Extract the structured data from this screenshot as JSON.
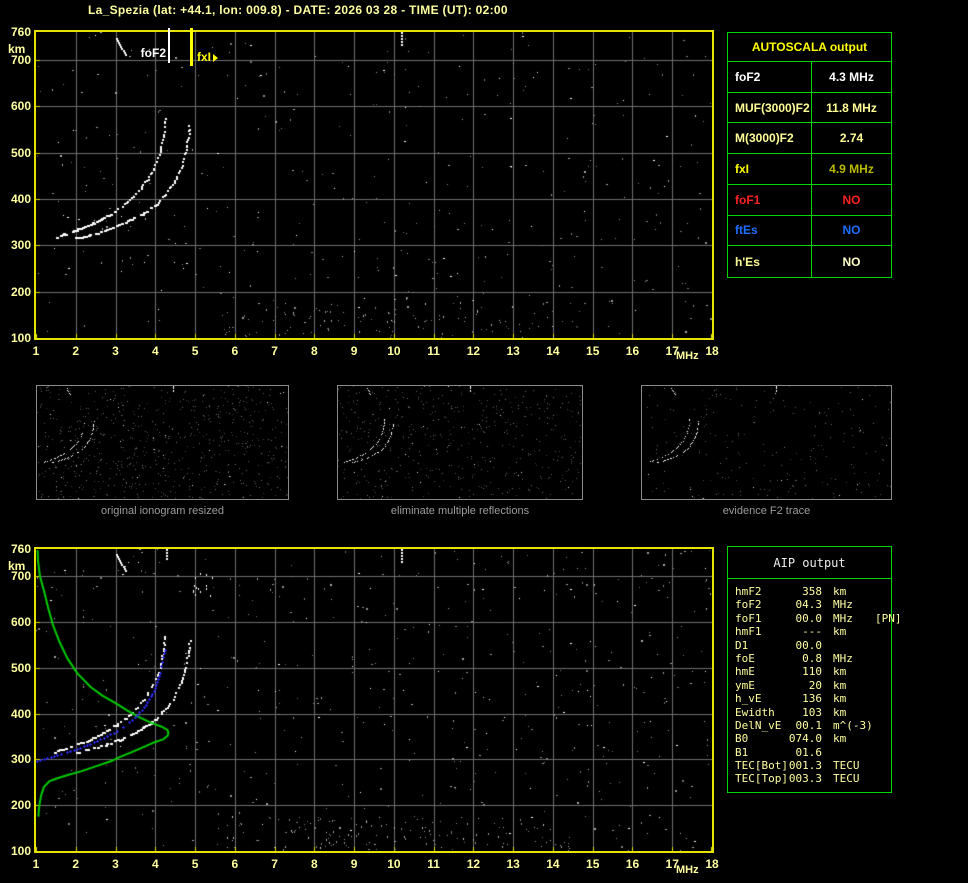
{
  "header": {
    "title": "La_Spezia (lat: +44.1, lon: 009.8) - DATE: 2026 03 28 - TIME (UT): 02:00"
  },
  "colors": {
    "background": "#000000",
    "axis_text": "#ffffa0",
    "plot_border": "#e4e400",
    "grid": "#6f6f6f",
    "table_border": "#00d800",
    "trace_white": "#ffffff",
    "profile_green": "#00cc00",
    "restored_blue": "#2a2aee",
    "noise_gray": "#8a8a8a",
    "caption_gray": "#9c9c9c",
    "marker_foF2": "#ffffff",
    "marker_fxI": "#ffff00"
  },
  "top_plot": {
    "x_ticks": [
      "1",
      "2",
      "3",
      "4",
      "5",
      "6",
      "7",
      "8",
      "9",
      "10",
      "11",
      "12",
      "13",
      "14",
      "15",
      "16",
      "17",
      "18"
    ],
    "y_ticks": [
      "760",
      "700",
      "600",
      "500",
      "400",
      "300",
      "200",
      "100"
    ],
    "x_axis_unit": "MHz",
    "y_axis_unit": "km",
    "markers": {
      "foF2": {
        "label": "foF2",
        "freq_mhz": 4.35
      },
      "fxI": {
        "label": "fxI",
        "freq_mhz": 4.92
      }
    }
  },
  "bottom_plot": {
    "x_ticks": [
      "1",
      "2",
      "3",
      "4",
      "5",
      "6",
      "7",
      "8",
      "9",
      "10",
      "11",
      "12",
      "13",
      "14",
      "15",
      "16",
      "17",
      "18"
    ],
    "y_ticks": [
      "760",
      "700",
      "600",
      "500",
      "400",
      "300",
      "200",
      "100"
    ],
    "x_axis_unit": "MHz",
    "y_axis_unit": "km"
  },
  "autoscala_table": {
    "title": "AUTOSCALA output",
    "rows": [
      {
        "label": "foF2",
        "value": "4.3 MHz",
        "color": "#ffffff",
        "value_color": "#ffffff"
      },
      {
        "label": "MUF(3000)F2",
        "value": "11.8 MHz",
        "color": "#ffff96",
        "value_color": "#ffff96"
      },
      {
        "label": "M(3000)F2",
        "value": "2.74",
        "color": "#ffff96",
        "value_color": "#ffff96"
      },
      {
        "label": "fxI",
        "value": "4.9 MHz",
        "color": "#ffff00",
        "value_color": "#b9b900"
      },
      {
        "label": "foF1",
        "value": "NO",
        "color": "#ff2222",
        "value_color": "#ff2222"
      },
      {
        "label": "ftEs",
        "value": "NO",
        "color": "#1e6eff",
        "value_color": "#1e6eff"
      },
      {
        "label": "h'Es",
        "value": "NO",
        "color": "#ffff96",
        "value_color": "#ffffc8"
      }
    ]
  },
  "thumbnails": [
    {
      "caption": "original ionogram resized"
    },
    {
      "caption": "eliminate multiple reflections"
    },
    {
      "caption": "evidence F2 trace"
    }
  ],
  "aip_table": {
    "title": "AIP output",
    "rows": [
      {
        "label": "hmF2",
        "value": "358",
        "unit": "km",
        "extra": ""
      },
      {
        "label": "foF2",
        "value": "04.3",
        "unit": "MHz",
        "extra": ""
      },
      {
        "label": "foF1",
        "value": "00.0",
        "unit": "MHz",
        "extra": "[PN]"
      },
      {
        "label": "hmF1",
        "value": "---",
        "unit": "km",
        "extra": ""
      },
      {
        "label": "D1",
        "value": "00.0",
        "unit": "",
        "extra": ""
      },
      {
        "label": "foE",
        "value": "0.8",
        "unit": "MHz",
        "extra": ""
      },
      {
        "label": "hmE",
        "value": "110",
        "unit": "km",
        "extra": ""
      },
      {
        "label": "ymE",
        "value": "20",
        "unit": "km",
        "extra": ""
      },
      {
        "label": "h_vE",
        "value": "136",
        "unit": "km",
        "extra": ""
      },
      {
        "label": "Ewidth",
        "value": "103",
        "unit": "km",
        "extra": ""
      },
      {
        "label": "DelN_vE",
        "value": "00.1",
        "unit": "m^(-3)",
        "extra": ""
      },
      {
        "label": "B0",
        "value": "074.0",
        "unit": "km",
        "extra": ""
      },
      {
        "label": "B1",
        "value": "01.6",
        "unit": "",
        "extra": ""
      },
      {
        "label": "TEC[Bot]",
        "value": "001.3",
        "unit": "TECU",
        "extra": ""
      },
      {
        "label": "TEC[Top]",
        "value": "003.3",
        "unit": "TECU",
        "extra": ""
      }
    ]
  },
  "chart_data": {
    "type": "scatter",
    "title": "ionogram virtual height vs frequency",
    "xlabel": "MHz",
    "ylabel": "km",
    "xlim": [
      1,
      18
    ],
    "ylim": [
      100,
      760
    ],
    "grid": true,
    "o_trace_mhz_km": [
      [
        1.45,
        318
      ],
      [
        1.65,
        323
      ],
      [
        1.85,
        329
      ],
      [
        2.05,
        335
      ],
      [
        2.25,
        342
      ],
      [
        2.45,
        350
      ],
      [
        2.65,
        359
      ],
      [
        2.85,
        369
      ],
      [
        3.05,
        380
      ],
      [
        3.25,
        393
      ],
      [
        3.45,
        408
      ],
      [
        3.62,
        424
      ],
      [
        3.77,
        441
      ],
      [
        3.9,
        459
      ],
      [
        4.0,
        478
      ],
      [
        4.08,
        497
      ],
      [
        4.14,
        516
      ],
      [
        4.18,
        534
      ],
      [
        4.21,
        552
      ],
      [
        4.23,
        570
      ],
      [
        4.24,
        580
      ]
    ],
    "x_trace_mhz_km": [
      [
        2.0,
        316
      ],
      [
        2.3,
        322
      ],
      [
        2.6,
        330
      ],
      [
        2.9,
        339
      ],
      [
        3.2,
        349
      ],
      [
        3.5,
        362
      ],
      [
        3.8,
        377
      ],
      [
        4.05,
        394
      ],
      [
        4.25,
        412
      ],
      [
        4.42,
        432
      ],
      [
        4.56,
        454
      ],
      [
        4.67,
        478
      ],
      [
        4.75,
        502
      ],
      [
        4.8,
        524
      ],
      [
        4.83,
        546
      ],
      [
        4.85,
        566
      ]
    ],
    "restored_trace_mhz_km": [
      [
        1.02,
        301
      ],
      [
        1.2,
        305
      ],
      [
        1.45,
        311
      ],
      [
        1.7,
        317
      ],
      [
        1.95,
        324
      ],
      [
        2.2,
        332
      ],
      [
        2.45,
        341
      ],
      [
        2.7,
        351
      ],
      [
        2.95,
        362
      ],
      [
        3.2,
        375
      ],
      [
        3.42,
        390
      ],
      [
        3.6,
        406
      ],
      [
        3.76,
        423
      ],
      [
        3.89,
        441
      ],
      [
        3.99,
        460
      ],
      [
        4.07,
        479
      ],
      [
        4.13,
        498
      ],
      [
        4.18,
        517
      ],
      [
        4.22,
        536
      ],
      [
        4.25,
        548
      ]
    ],
    "ne_profile_mhz_km": [
      [
        1.04,
        758
      ],
      [
        1.05,
        734
      ],
      [
        1.1,
        700
      ],
      [
        1.2,
        669
      ],
      [
        1.31,
        630
      ],
      [
        1.43,
        593
      ],
      [
        1.6,
        555
      ],
      [
        1.79,
        521
      ],
      [
        2.05,
        487
      ],
      [
        2.38,
        458
      ],
      [
        2.68,
        439
      ],
      [
        3.0,
        423
      ],
      [
        3.3,
        407
      ],
      [
        3.63,
        391
      ],
      [
        3.9,
        380
      ],
      [
        4.18,
        371
      ],
      [
        4.31,
        364
      ],
      [
        4.33,
        358
      ],
      [
        4.31,
        352
      ],
      [
        4.2,
        344
      ],
      [
        3.96,
        337
      ],
      [
        3.7,
        327
      ],
      [
        3.38,
        315
      ],
      [
        3.1,
        305
      ],
      [
        2.88,
        296
      ],
      [
        2.5,
        285
      ],
      [
        2.13,
        274
      ],
      [
        1.8,
        266
      ],
      [
        1.5,
        258
      ],
      [
        1.33,
        252
      ],
      [
        1.2,
        240
      ],
      [
        1.13,
        222
      ],
      [
        1.09,
        203
      ],
      [
        1.07,
        188
      ],
      [
        1.06,
        175
      ]
    ],
    "artifacts": [
      {
        "plots": [
          "top",
          "bottom"
        ],
        "type": "diagonal-dash",
        "from_mhz_km": [
          3.0,
          748
        ],
        "to_mhz_km": [
          3.25,
          712
        ]
      },
      {
        "plots": [
          "top",
          "bottom"
        ],
        "type": "vertical-dash",
        "from_mhz_km": [
          10.18,
          760
        ],
        "to_mhz_km": [
          10.18,
          731
        ]
      },
      {
        "plots": [
          "bottom"
        ],
        "type": "vertical-dash",
        "from_mhz_km": [
          4.28,
          760
        ],
        "to_mhz_km": [
          4.28,
          736
        ]
      },
      {
        "plots": [
          "bottom"
        ],
        "type": "dot-cluster",
        "from_mhz_km": [
          4.9,
          712
        ],
        "to_mhz_km": [
          5.45,
          658
        ]
      }
    ]
  }
}
